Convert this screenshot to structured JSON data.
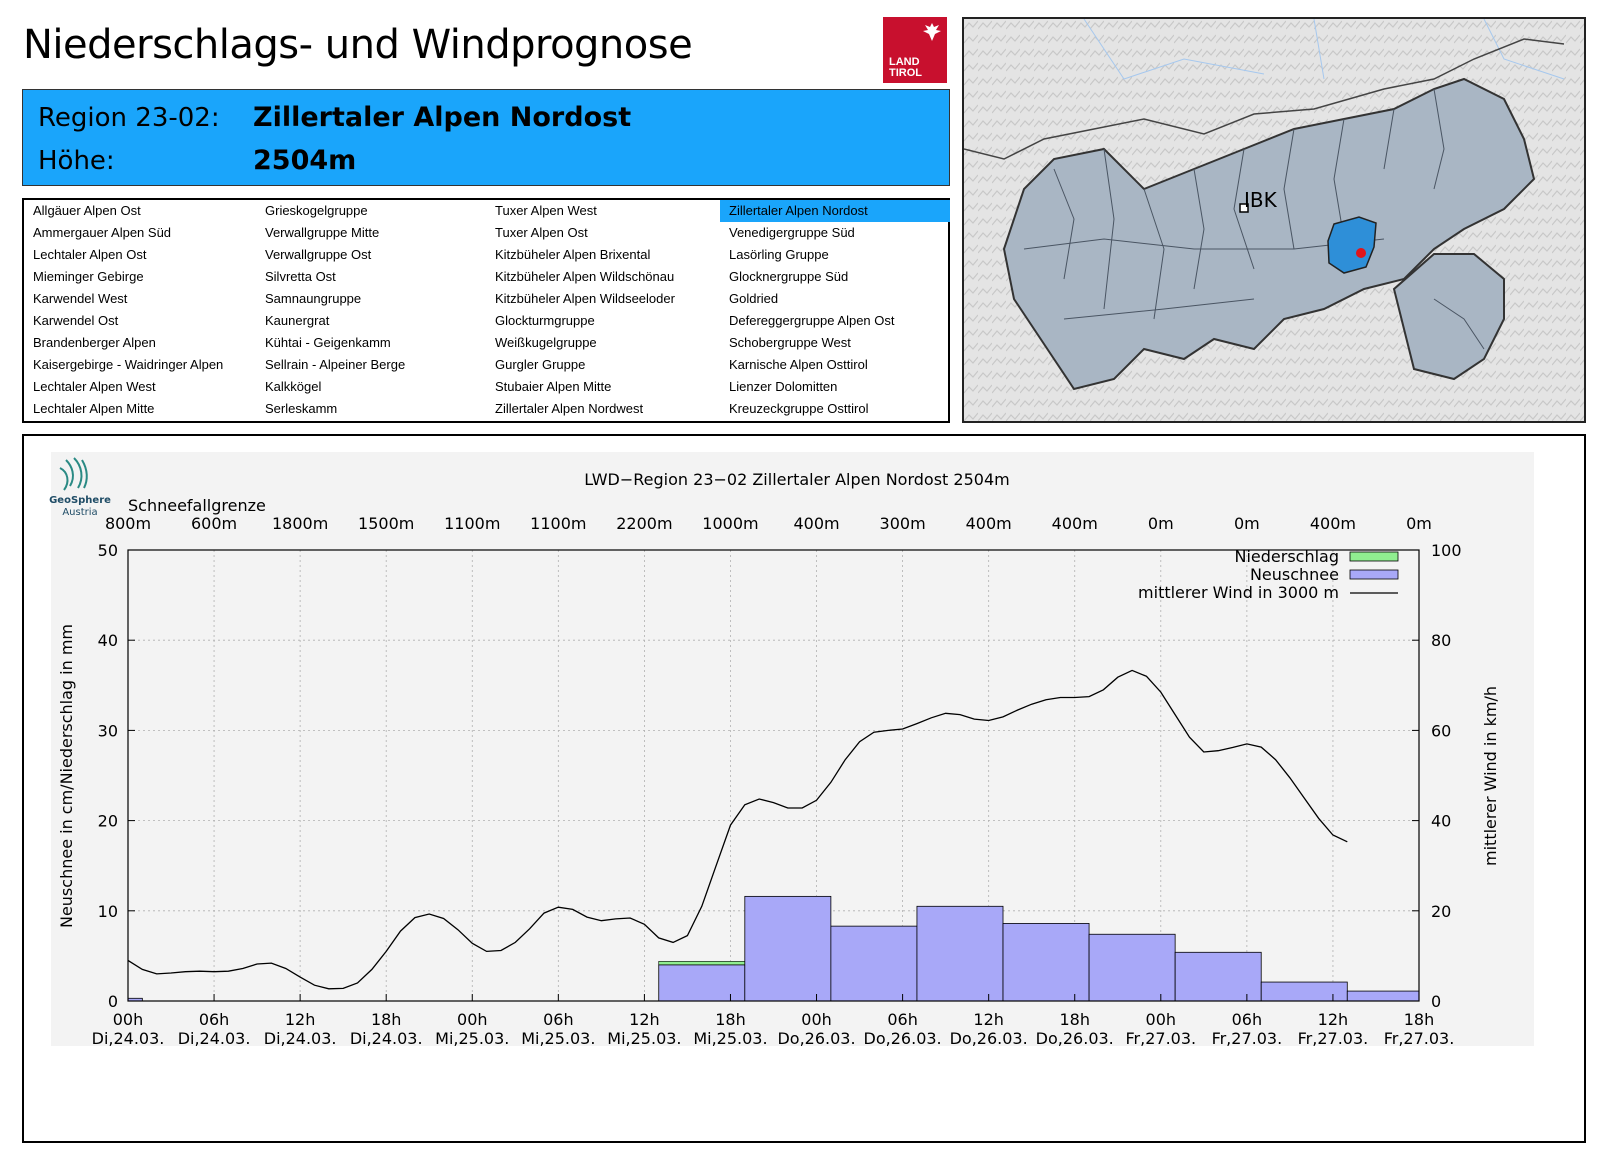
{
  "header": {
    "title": "Niederschlags- und Windprognose",
    "logo_line1": "LAND",
    "logo_line2": "TIROL"
  },
  "region": {
    "region_label": "Region 23-02:",
    "region_name": "Zillertaler Alpen Nordost",
    "height_label": "Höhe:",
    "height_value": "2504m"
  },
  "region_list": {
    "selected": "Zillertaler Alpen Nordost",
    "columns": [
      [
        "Allgäuer Alpen Ost",
        "Ammergauer Alpen Süd",
        "Lechtaler Alpen Ost",
        "Mieminger Gebirge",
        "Karwendel West",
        "Karwendel Ost",
        "Brandenberger Alpen",
        "Kaisergebirge - Waidringer Alpen",
        "Lechtaler Alpen West",
        "Lechtaler Alpen Mitte"
      ],
      [
        "Grieskogelgruppe",
        "Verwallgruppe Mitte",
        "Verwallgruppe Ost",
        "Silvretta Ost",
        "Samnaungruppe",
        "Kaunergrat",
        "Kühtai - Geigenkamm",
        "Sellrain - Alpeiner Berge",
        "Kalkkögel",
        "Serleskamm"
      ],
      [
        "Tuxer Alpen West",
        "Tuxer Alpen Ost",
        "Kitzbüheler Alpen Brixental",
        "Kitzbüheler Alpen Wildschönau",
        "Kitzbüheler Alpen Wildseeloder",
        "Glockturmgruppe",
        "Weißkugelgruppe",
        "Gurgler Gruppe",
        "Stubaier Alpen Mitte",
        "Zillertaler Alpen Nordwest"
      ],
      [
        "Zillertaler Alpen Nordost",
        "Venedigergruppe Süd",
        "Lasörling Gruppe",
        "Glocknergruppe Süd",
        "Goldried",
        "Defereggergruppe Alpen Ost",
        "Schobergruppe West",
        "Karnische Alpen Osttirol",
        "Lienzer Dolomitten",
        "Kreuzeckgruppe Osttirol"
      ]
    ]
  },
  "map": {
    "city_label": "IBK",
    "colors": {
      "region_fill": "#a9b6c4",
      "selected_fill": "#2e8fd8",
      "marker": "#e0151b"
    }
  },
  "chart_data": {
    "type": "bar+line",
    "title": "LWD−Region 23−02 Zillertaler Alpen Nordost 2504m",
    "provider": {
      "line1": "GeoSphere",
      "line2": "Austria"
    },
    "snowline_title": "Schneefallgrenze",
    "snowline": [
      "800m",
      "600m",
      "1800m",
      "1500m",
      "1100m",
      "1100m",
      "2200m",
      "1000m",
      "400m",
      "300m",
      "400m",
      "400m",
      "0m",
      "0m",
      "400m",
      "0m"
    ],
    "ylabel": "Neuschnee in cm/Niederschlag in mm",
    "y2label": "mittlerer Wind in km/h",
    "ylim": [
      0,
      50
    ],
    "y2lim": [
      0,
      100
    ],
    "yticks": [
      "0",
      "10",
      "20",
      "30",
      "40",
      "50"
    ],
    "y2ticks": [
      "0",
      "20",
      "40",
      "60",
      "80",
      "100"
    ],
    "xlim_hours": [
      0,
      90
    ],
    "xticks": [
      {
        "time": "00h",
        "date": "Di,24.03."
      },
      {
        "time": "06h",
        "date": "Di,24.03."
      },
      {
        "time": "12h",
        "date": "Di,24.03."
      },
      {
        "time": "18h",
        "date": "Di,24.03."
      },
      {
        "time": "00h",
        "date": "Mi,25.03."
      },
      {
        "time": "06h",
        "date": "Mi,25.03."
      },
      {
        "time": "12h",
        "date": "Mi,25.03."
      },
      {
        "time": "18h",
        "date": "Mi,25.03."
      },
      {
        "time": "00h",
        "date": "Do,26.03."
      },
      {
        "time": "06h",
        "date": "Do,26.03."
      },
      {
        "time": "12h",
        "date": "Do,26.03."
      },
      {
        "time": "18h",
        "date": "Do,26.03."
      },
      {
        "time": "00h",
        "date": "Fr,27.03."
      },
      {
        "time": "06h",
        "date": "Fr,27.03."
      },
      {
        "time": "12h",
        "date": "Fr,27.03."
      },
      {
        "time": "18h",
        "date": "Fr,27.03."
      }
    ],
    "legend": {
      "precip": "Niederschlag",
      "snow": "Neuschnee",
      "wind": "mittlerer Wind in 3000 m"
    },
    "colors": {
      "precip": "#90ee90",
      "snow": "#a8a8f8",
      "wind": "#000000"
    },
    "bars": [
      {
        "start": 0,
        "end": 1,
        "snow": 0.3,
        "precip": 0.3
      },
      {
        "start": 37,
        "end": 43,
        "snow": 4.0,
        "precip": 4.4
      },
      {
        "start": 43,
        "end": 49,
        "snow": 11.6,
        "precip": 11.6
      },
      {
        "start": 49,
        "end": 55,
        "snow": 8.3,
        "precip": 8.3
      },
      {
        "start": 55,
        "end": 61,
        "snow": 10.5,
        "precip": 10.5
      },
      {
        "start": 61,
        "end": 67,
        "snow": 8.6,
        "precip": 8.6
      },
      {
        "start": 67,
        "end": 73,
        "snow": 7.4,
        "precip": 7.4
      },
      {
        "start": 73,
        "end": 79,
        "snow": 5.4,
        "precip": 5.4
      },
      {
        "start": 79,
        "end": 85,
        "snow": 2.1,
        "precip": 2.1
      },
      {
        "start": 85,
        "end": 90,
        "snow": 1.1,
        "precip": 1.1
      }
    ],
    "wind": [
      [
        0,
        9
      ],
      [
        1,
        7
      ],
      [
        2,
        6
      ],
      [
        3,
        6.2
      ],
      [
        4,
        6.5
      ],
      [
        5,
        6.6
      ],
      [
        6,
        6.5
      ],
      [
        7,
        6.6
      ],
      [
        8,
        7.2
      ],
      [
        9,
        8.2
      ],
      [
        10,
        8.4
      ],
      [
        11,
        7.2
      ],
      [
        12,
        5.3
      ],
      [
        13,
        3.5
      ],
      [
        14,
        2.7
      ],
      [
        15,
        2.8
      ],
      [
        16,
        4
      ],
      [
        17,
        7
      ],
      [
        18,
        11
      ],
      [
        19,
        15.5
      ],
      [
        20,
        18.5
      ],
      [
        21,
        19.3
      ],
      [
        22,
        18.3
      ],
      [
        23,
        15.8
      ],
      [
        24,
        12.8
      ],
      [
        25,
        11
      ],
      [
        26,
        11.2
      ],
      [
        27,
        13
      ],
      [
        28,
        16
      ],
      [
        29,
        19.5
      ],
      [
        30,
        20.8
      ],
      [
        31,
        20.3
      ],
      [
        32,
        18.6
      ],
      [
        33,
        17.8
      ],
      [
        34,
        18.2
      ],
      [
        35,
        18.4
      ],
      [
        36,
        17
      ],
      [
        37,
        14
      ],
      [
        38,
        13
      ],
      [
        39,
        14.5
      ],
      [
        40,
        21
      ],
      [
        41,
        30
      ],
      [
        42,
        39
      ],
      [
        43,
        43.5
      ],
      [
        44,
        44.8
      ],
      [
        45,
        44
      ],
      [
        46,
        42.8
      ],
      [
        47,
        42.8
      ],
      [
        48,
        44.5
      ],
      [
        49,
        48.5
      ],
      [
        50,
        53.5
      ],
      [
        51,
        57.5
      ],
      [
        52,
        59.6
      ],
      [
        53,
        60
      ],
      [
        54,
        60.3
      ],
      [
        55,
        61.5
      ],
      [
        56,
        62.8
      ],
      [
        57,
        63.8
      ],
      [
        58,
        63.5
      ],
      [
        59,
        62.5
      ],
      [
        60,
        62.2
      ],
      [
        61,
        63
      ],
      [
        62,
        64.5
      ],
      [
        63,
        65.8
      ],
      [
        64,
        66.8
      ],
      [
        65,
        67.3
      ],
      [
        66,
        67.3
      ],
      [
        67,
        67.5
      ],
      [
        68,
        69
      ],
      [
        69,
        71.8
      ],
      [
        70,
        73.3
      ],
      [
        71,
        72
      ],
      [
        72,
        68.5
      ],
      [
        73,
        63.5
      ],
      [
        74,
        58.5
      ],
      [
        75,
        55.2
      ],
      [
        76,
        55.5
      ],
      [
        77,
        56.2
      ],
      [
        78,
        57
      ],
      [
        79,
        56.3
      ],
      [
        80,
        53.5
      ],
      [
        81,
        49.5
      ],
      [
        82,
        45
      ],
      [
        83,
        40.5
      ],
      [
        84,
        36.8
      ],
      [
        85,
        35.3
      ]
    ]
  }
}
